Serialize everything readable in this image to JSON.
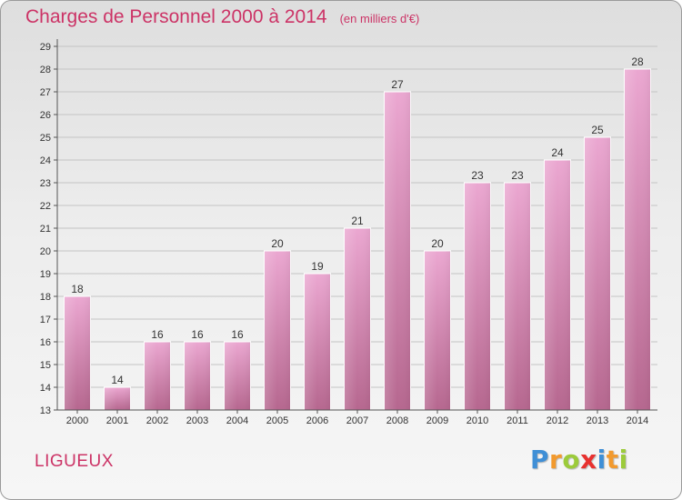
{
  "header": {
    "title": "Charges de Personnel 2000 à 2014",
    "subtitle": "(en milliers d'€)"
  },
  "footer": {
    "commune": "LIGUEUX",
    "logo": {
      "text": "Proxiti",
      "letters": [
        {
          "char": "P",
          "color": "#3f8fd6"
        },
        {
          "char": "r",
          "color": "#f29a2e"
        },
        {
          "char": "o",
          "color": "#9ccb3b"
        },
        {
          "char": "x",
          "color": "#e8312f"
        },
        {
          "char": "i",
          "color": "#3f8fd6"
        },
        {
          "char": "t",
          "color": "#f29a2e"
        },
        {
          "char": "i",
          "color": "#9ccb3b"
        }
      ]
    }
  },
  "colors": {
    "title": "#cc3366",
    "bar_top": "#eba7d1",
    "bar_bottom": "#b6678f"
  },
  "chart_data": {
    "type": "bar",
    "categories": [
      "2000",
      "2001",
      "2002",
      "2003",
      "2004",
      "2005",
      "2006",
      "2007",
      "2008",
      "2009",
      "2010",
      "2011",
      "2012",
      "2013",
      "2014"
    ],
    "values": [
      18,
      14,
      16,
      16,
      16,
      20,
      19,
      21,
      27,
      20,
      23,
      23,
      24,
      25,
      28
    ],
    "title": "Charges de Personnel 2000 à 2014",
    "subtitle": "(en milliers d'€)",
    "xlabel": "",
    "ylabel": "",
    "ylim": [
      13,
      29
    ],
    "yticks": [
      13,
      14,
      15,
      16,
      17,
      18,
      19,
      20,
      21,
      22,
      23,
      24,
      25,
      26,
      27,
      28,
      29
    ],
    "grid": true,
    "legend": "none"
  }
}
